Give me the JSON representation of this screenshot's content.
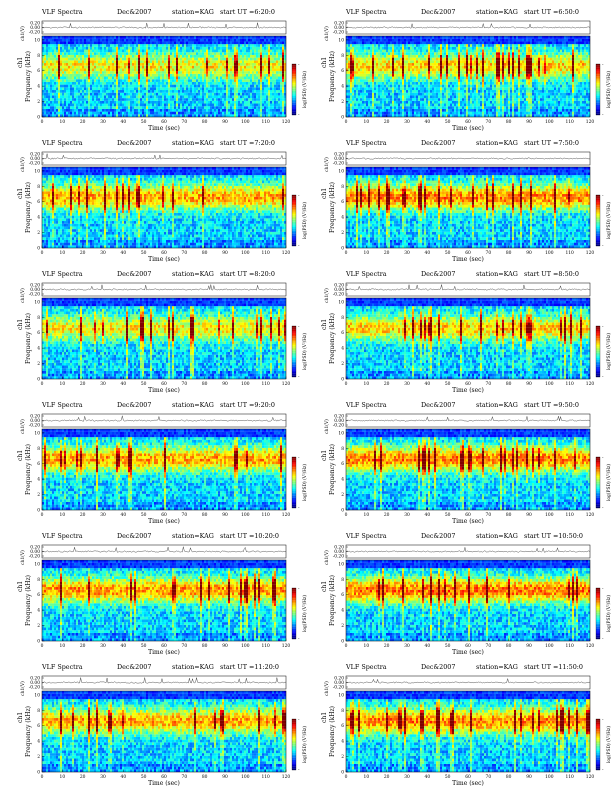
{
  "figure": {
    "title_prefix": "VLF Spectra",
    "date": "Dec&2007",
    "station": "station=KAG",
    "time_xlabel": "Time  (sec)",
    "freq_ylabel": "Frequency  (kHz)",
    "ch_label": "ch1",
    "ch_top_label": "ch1(V)",
    "colorbar_label": "log(PSD) (V²/Hz)",
    "colorbar_ticks": [
      "-",
      "-"
    ]
  },
  "chart_data": [
    {
      "type": "heatmap",
      "title": "VLF Spectra   Dec&2007   station=KAG  start  UT =6:20:0",
      "start_ut": "start  UT =6:20:0",
      "x": [
        0,
        10,
        20,
        30,
        40,
        50,
        60,
        70,
        80,
        90,
        100,
        110,
        120
      ],
      "y": [
        0,
        2,
        4,
        6,
        8,
        10
      ],
      "ch_ticks": [
        "0.20",
        "0.00",
        "-0.20"
      ],
      "xlim": [
        0,
        120
      ],
      "ylim": [
        0,
        10.5
      ],
      "xlabel": "Time  (sec)",
      "ylabel": "Frequency  (kHz)"
    },
    {
      "type": "heatmap",
      "title": "VLF Spectra   Dec&2007   station=KAG  start  UT =6:50:0",
      "start_ut": "start  UT =6:50:0",
      "x": [
        0,
        10,
        20,
        30,
        40,
        50,
        60,
        70,
        80,
        90,
        100,
        110,
        120
      ],
      "y": [
        0,
        2,
        4,
        6,
        8,
        10
      ],
      "ch_ticks": [
        "0.20",
        "0.00",
        "-0.20"
      ],
      "xlim": [
        0,
        120
      ],
      "ylim": [
        0,
        10.5
      ],
      "xlabel": "Time  (sec)",
      "ylabel": "Frequency  (kHz)"
    },
    {
      "type": "heatmap",
      "title": "VLF Spectra   Dec&2007   station=KAG  start  UT =7:20:0",
      "start_ut": "start  UT =7:20:0",
      "x": [
        0,
        10,
        20,
        30,
        40,
        50,
        60,
        70,
        80,
        90,
        100,
        110,
        120
      ],
      "y": [
        0,
        2,
        4,
        6,
        8,
        10
      ],
      "ch_ticks": [
        "0.20",
        "0.00",
        "-0.20"
      ],
      "xlim": [
        0,
        120
      ],
      "ylim": [
        0,
        10.5
      ],
      "xlabel": "Time  (sec)",
      "ylabel": "Frequency  (kHz)"
    },
    {
      "type": "heatmap",
      "title": "VLF Spectra   Dec&2007   station=KAG  start  UT =7:50:0",
      "start_ut": "start  UT =7:50:0",
      "x": [
        0,
        10,
        20,
        30,
        40,
        50,
        60,
        70,
        80,
        90,
        100,
        110,
        120
      ],
      "y": [
        0,
        2,
        4,
        6,
        8,
        10
      ],
      "ch_ticks": [
        "0.20",
        "0.00",
        "-0.20"
      ],
      "xlim": [
        0,
        120
      ],
      "ylim": [
        0,
        10.5
      ],
      "xlabel": "Time  (sec)",
      "ylabel": "Frequency  (kHz)"
    },
    {
      "type": "heatmap",
      "title": "VLF Spectra   Dec&2007   station=KAG  start  UT =8:20:0",
      "start_ut": "start  UT =8:20:0",
      "x": [
        0,
        10,
        20,
        30,
        40,
        50,
        60,
        70,
        80,
        90,
        100,
        110,
        120
      ],
      "y": [
        0,
        2,
        4,
        6,
        8,
        10
      ],
      "ch_ticks": [
        "0.20",
        "0.00",
        "-0.20"
      ],
      "xlim": [
        0,
        120
      ],
      "ylim": [
        0,
        10.5
      ],
      "xlabel": "Time  (sec)",
      "ylabel": "Frequency  (kHz)"
    },
    {
      "type": "heatmap",
      "title": "VLF Spectra   Dec&2007   station=KAG  start  UT =8:50:0",
      "start_ut": "start  UT =8:50:0",
      "x": [
        0,
        10,
        20,
        30,
        40,
        50,
        60,
        70,
        80,
        90,
        100,
        110,
        120
      ],
      "y": [
        0,
        2,
        4,
        6,
        8,
        10
      ],
      "ch_ticks": [
        "0.20",
        "0.00",
        "-0.20"
      ],
      "xlim": [
        0,
        120
      ],
      "ylim": [
        0,
        10.5
      ],
      "xlabel": "Time  (sec)",
      "ylabel": "Frequency  (kHz)"
    },
    {
      "type": "heatmap",
      "title": "VLF Spectra   Dec&2007   station=KAG  start  UT =9:20:0",
      "start_ut": "start  UT =9:20:0",
      "x": [
        0,
        10,
        20,
        30,
        40,
        50,
        60,
        70,
        80,
        90,
        100,
        110,
        120
      ],
      "y": [
        0,
        2,
        4,
        6,
        8,
        10
      ],
      "ch_ticks": [
        "0.20",
        "0.00",
        "-0.20"
      ],
      "xlim": [
        0,
        120
      ],
      "ylim": [
        0,
        10.5
      ],
      "xlabel": "Time  (sec)",
      "ylabel": "Frequency  (kHz)"
    },
    {
      "type": "heatmap",
      "title": "VLF Spectra   Dec&2007   station=KAG  start  UT =9:50:0",
      "start_ut": "start  UT =9:50:0",
      "x": [
        0,
        10,
        20,
        30,
        40,
        50,
        60,
        70,
        80,
        90,
        100,
        110,
        120
      ],
      "y": [
        0,
        2,
        4,
        6,
        8,
        10
      ],
      "ch_ticks": [
        "0.20",
        "0.00",
        "-0.20"
      ],
      "xlim": [
        0,
        120
      ],
      "ylim": [
        0,
        10.5
      ],
      "xlabel": "Time  (sec)",
      "ylabel": "Frequency  (kHz)"
    },
    {
      "type": "heatmap",
      "title": "VLF Spectra   Dec&2007   station=KAG  start  UT =10:20:0",
      "start_ut": "start  UT =10:20:0",
      "x": [
        0,
        10,
        20,
        30,
        40,
        50,
        60,
        70,
        80,
        90,
        100,
        110,
        120
      ],
      "y": [
        0,
        2,
        4,
        6,
        8,
        10
      ],
      "ch_ticks": [
        "0.20",
        "0.00",
        "-0.20"
      ],
      "xlim": [
        0,
        120
      ],
      "ylim": [
        0,
        10.5
      ],
      "xlabel": "Time  (sec)",
      "ylabel": "Frequency  (kHz)"
    },
    {
      "type": "heatmap",
      "title": "VLF Spectra   Dec&2007   station=KAG  start  UT =10:50:0",
      "start_ut": "start  UT =10:50:0",
      "x": [
        0,
        10,
        20,
        30,
        40,
        50,
        60,
        70,
        80,
        90,
        100,
        110,
        120
      ],
      "y": [
        0,
        2,
        4,
        6,
        8,
        10
      ],
      "ch_ticks": [
        "0.20",
        "0.00",
        "-0.20"
      ],
      "xlim": [
        0,
        120
      ],
      "ylim": [
        0,
        10.5
      ],
      "xlabel": "Time  (sec)",
      "ylabel": "Frequency  (kHz)"
    },
    {
      "type": "heatmap",
      "title": "VLF Spectra   Dec&2007   station=KAG  start  UT =11:20:0",
      "start_ut": "start  UT =11:20:0",
      "x": [
        0,
        10,
        20,
        30,
        40,
        50,
        60,
        70,
        80,
        90,
        100,
        110,
        120
      ],
      "y": [
        0,
        2,
        4,
        6,
        8,
        10
      ],
      "ch_ticks": [
        "0.20",
        "0.00",
        "-0.20"
      ],
      "xlim": [
        0,
        120
      ],
      "ylim": [
        0,
        10.5
      ],
      "xlabel": "Time  (sec)",
      "ylabel": "Frequency  (kHz)"
    },
    {
      "type": "heatmap",
      "title": "VLF Spectra   Dec&2007   station=KAG  start  UT =11:50:0",
      "start_ut": "start  UT =11:50:0",
      "x": [
        0,
        10,
        20,
        30,
        40,
        50,
        60,
        70,
        80,
        90,
        100,
        110,
        120
      ],
      "y": [
        0,
        2,
        4,
        6,
        8,
        10
      ],
      "ch_ticks": [
        "0.20",
        "0.00",
        "-0.20"
      ],
      "xlim": [
        0,
        120
      ],
      "ylim": [
        0,
        10.5
      ],
      "xlabel": "Time  (sec)",
      "ylabel": "Frequency  (kHz)"
    }
  ]
}
